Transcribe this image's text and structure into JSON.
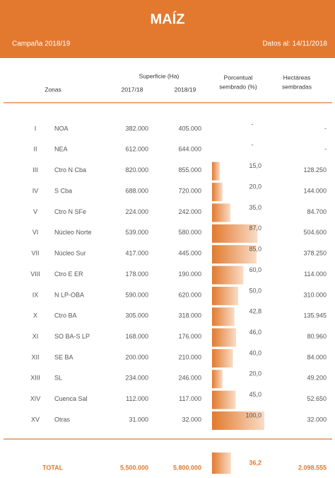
{
  "header": {
    "title": "MAÍZ",
    "campaign": "Campaña 2018/19",
    "date": "Datos al: 14/11/2018"
  },
  "table": {
    "headers": {
      "surface": "Superficie (Ha)",
      "zones": "Zonas",
      "year1": "2017/18",
      "year2": "2018/19",
      "pct_line1": "Porcentual",
      "pct_line2": "sembrado (%)",
      "ha_line1": "Hectáreas",
      "ha_line2": "sembradas"
    },
    "rows": [
      {
        "num": "I",
        "zone": "NOA",
        "a": "382.000",
        "b": "405.000",
        "pct": "-",
        "ha": "-"
      },
      {
        "num": "II",
        "zone": "NEA",
        "a": "612.000",
        "b": "644.000",
        "pct": "-",
        "ha": "-"
      },
      {
        "num": "III",
        "zone": "Ctro N Cba",
        "a": "820.000",
        "b": "855.000",
        "pct": {
          "value": 15.0,
          "label": "15,0"
        },
        "ha": "128.250"
      },
      {
        "num": "IV",
        "zone": "S Cba",
        "a": "688.000",
        "b": "720.000",
        "pct": {
          "value": 20.0,
          "label": "20,0"
        },
        "ha": "144.000"
      },
      {
        "num": "V",
        "zone": "Ctro N SFe",
        "a": "224.000",
        "b": "242.000",
        "pct": {
          "value": 35.0,
          "label": "35,0"
        },
        "ha": "84.700"
      },
      {
        "num": "VI",
        "zone": "Núcleo Norte",
        "a": "539.000",
        "b": "580.000",
        "pct": {
          "value": 87.0,
          "label": "87,0"
        },
        "ha": "504.600"
      },
      {
        "num": "VII",
        "zone": "Núcleo Sur",
        "a": "417.000",
        "b": "445.000",
        "pct": {
          "value": 85.0,
          "label": "85,0"
        },
        "ha": "378.250"
      },
      {
        "num": "VIII",
        "zone": "Ctro E ER",
        "a": "178.000",
        "b": "190.000",
        "pct": {
          "value": 60.0,
          "label": "60,0"
        },
        "ha": "114.000"
      },
      {
        "num": "IX",
        "zone": "N LP-OBA",
        "a": "590.000",
        "b": "620.000",
        "pct": {
          "value": 50.0,
          "label": "50,0"
        },
        "ha": "310.000"
      },
      {
        "num": "X",
        "zone": "Ctro BA",
        "a": "305.000",
        "b": "318.000",
        "pct": {
          "value": 42.8,
          "label": "42,8"
        },
        "ha": "135.945"
      },
      {
        "num": "XI",
        "zone": "SO BA-S LP",
        "a": "168.000",
        "b": "176.000",
        "pct": {
          "value": 46.0,
          "label": "46,0"
        },
        "ha": "80.960"
      },
      {
        "num": "XII",
        "zone": "SE BA",
        "a": "200.000",
        "b": "210.000",
        "pct": {
          "value": 40.0,
          "label": "40,0"
        },
        "ha": "84.000"
      },
      {
        "num": "XIII",
        "zone": "SL",
        "a": "234.000",
        "b": "246.000",
        "pct": {
          "value": 20.0,
          "label": "20,0"
        },
        "ha": "49.200"
      },
      {
        "num": "XIV",
        "zone": "Cuenca Sal",
        "a": "112.000",
        "b": "117.000",
        "pct": {
          "value": 45.0,
          "label": "45,0"
        },
        "ha": "52.650"
      },
      {
        "num": "XV",
        "zone": "Otras",
        "a": "31.000",
        "b": "32.000",
        "pct": {
          "value": 100.0,
          "label": "100,0"
        },
        "ha": "32.000"
      }
    ],
    "total": {
      "label": "TOTAL",
      "a": "5.500.000",
      "b": "5.800.000",
      "pct": {
        "value": 36.2,
        "label": "36,2"
      },
      "ha": "2.098.555"
    }
  }
}
